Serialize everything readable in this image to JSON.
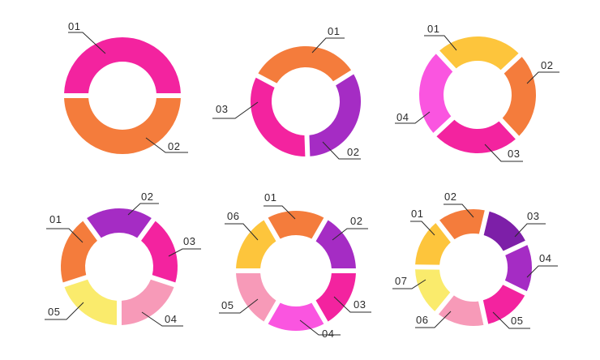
{
  "palette": {
    "orange": "#f47c3c",
    "pink": "#f3239f",
    "purple": "#a52cc4",
    "darkpurple": "#7d1fa8",
    "yellow": "#fdc53c",
    "lightyellow": "#faeb6c",
    "lightpink": "#f79ab8",
    "magenta": "#fa55e0",
    "line": "#2a2a2a"
  },
  "donuts": [
    {
      "id": "donut-2",
      "segments": [
        {
          "label": "01",
          "color": "#f47c3c"
        },
        {
          "label": "02",
          "color": "#f3239f"
        }
      ]
    },
    {
      "id": "donut-3",
      "segments": [
        {
          "label": "01",
          "color": "#f47c3c"
        },
        {
          "label": "02",
          "color": "#a52cc4"
        },
        {
          "label": "03",
          "color": "#f3239f"
        }
      ]
    },
    {
      "id": "donut-4",
      "segments": [
        {
          "label": "01",
          "color": "#fdc53c"
        },
        {
          "label": "02",
          "color": "#f47c3c"
        },
        {
          "label": "03",
          "color": "#f3239f"
        },
        {
          "label": "04",
          "color": "#fa55e0"
        }
      ]
    },
    {
      "id": "donut-5",
      "segments": [
        {
          "label": "01",
          "color": "#f47c3c"
        },
        {
          "label": "02",
          "color": "#a52cc4"
        },
        {
          "label": "03",
          "color": "#f3239f"
        },
        {
          "label": "04",
          "color": "#f79ab8"
        },
        {
          "label": "05",
          "color": "#faeb6c"
        }
      ]
    },
    {
      "id": "donut-6",
      "segments": [
        {
          "label": "01",
          "color": "#f47c3c"
        },
        {
          "label": "02",
          "color": "#a52cc4"
        },
        {
          "label": "03",
          "color": "#f3239f"
        },
        {
          "label": "04",
          "color": "#fa55e0"
        },
        {
          "label": "05",
          "color": "#f79ab8"
        },
        {
          "label": "06",
          "color": "#fdc53c"
        }
      ]
    },
    {
      "id": "donut-7",
      "segments": [
        {
          "label": "01",
          "color": "#f47c3c"
        },
        {
          "label": "02",
          "color": "#7d1fa8"
        },
        {
          "label": "03",
          "color": "#a52cc4"
        },
        {
          "label": "04",
          "color": "#f3239f"
        },
        {
          "label": "05",
          "color": "#f79ab8"
        },
        {
          "label": "06",
          "color": "#faeb6c"
        },
        {
          "label": "07",
          "color": "#fdc53c"
        }
      ]
    }
  ]
}
